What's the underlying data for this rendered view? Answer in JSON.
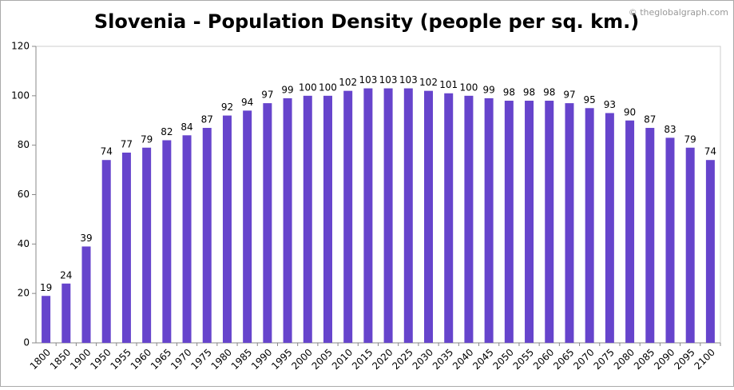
{
  "chart_data": {
    "type": "bar",
    "title": "Slovenia - Population Density (people per sq. km.)",
    "watermark": "© theglobalgraph.com",
    "categories": [
      "1800",
      "1850",
      "1900",
      "1950",
      "1955",
      "1960",
      "1965",
      "1970",
      "1975",
      "1980",
      "1985",
      "1990",
      "1995",
      "2000",
      "2005",
      "2010",
      "2015",
      "2020",
      "2025",
      "2030",
      "2035",
      "2040",
      "2045",
      "2050",
      "2055",
      "2060",
      "2065",
      "2070",
      "2075",
      "2080",
      "2085",
      "2090",
      "2095",
      "2100"
    ],
    "values": [
      19,
      24,
      39,
      74,
      77,
      79,
      82,
      84,
      87,
      92,
      94,
      97,
      99,
      100,
      100,
      102,
      103,
      103,
      103,
      102,
      101,
      100,
      99,
      98,
      98,
      98,
      97,
      95,
      93,
      90,
      87,
      83,
      79,
      74
    ],
    "color": "#6644cc",
    "ylim": [
      0,
      120
    ],
    "yticks": [
      0,
      20,
      40,
      60,
      80,
      100,
      120
    ],
    "grid": false
  }
}
